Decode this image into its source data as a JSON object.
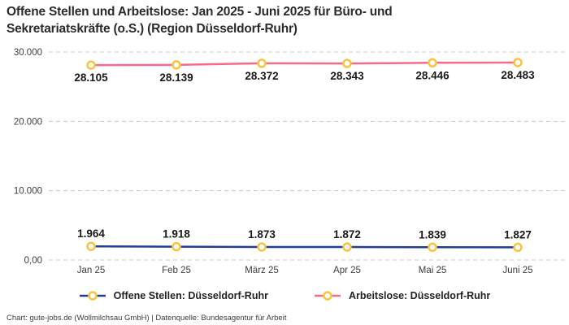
{
  "title": "Offene Stellen und Arbeitslose: Jan 2025 - Juni 2025 für Büro- und Sekretariatskräfte (o.S.) (Region Düsseldorf-Ruhr)",
  "footer": "Chart: gute-jobs.de (Wollmilchsau GmbH) | Datenquelle: Bundesagentur für Arbeit",
  "colors": {
    "blue": "#203d97",
    "pink": "#f8698b",
    "marker": "#fbc33d",
    "grid": "#c9c9c9"
  },
  "chart_data": {
    "type": "line",
    "title": "Offene Stellen und Arbeitslose: Jan 2025 - Juni 2025 für Büro- und Sekretariatskräfte (o.S.) (Region Düsseldorf-Ruhr)",
    "xlabel": "",
    "ylabel": "",
    "categories": [
      "Jan 25",
      "Feb 25",
      "März 25",
      "Apr 25",
      "Mai 25",
      "Juni 25"
    ],
    "series": [
      {
        "name": "Offene Stellen: Düsseldorf-Ruhr",
        "values": [
          1964,
          1918,
          1873,
          1872,
          1839,
          1827
        ],
        "labels": [
          "1.964",
          "1.918",
          "1.873",
          "1.872",
          "1.839",
          "1.827"
        ],
        "color_key": "blue",
        "label_position": "above"
      },
      {
        "name": "Arbeitslose: Düsseldorf-Ruhr",
        "values": [
          28105,
          28139,
          28372,
          28343,
          28446,
          28483
        ],
        "labels": [
          "28.105",
          "28.139",
          "28.372",
          "28.343",
          "28.446",
          "28.483"
        ],
        "color_key": "pink",
        "label_position": "below"
      }
    ],
    "y_ticks": [
      {
        "value": 0,
        "label": "0,00"
      },
      {
        "value": 10000,
        "label": "10.000"
      },
      {
        "value": 20000,
        "label": "20.000"
      },
      {
        "value": 30000,
        "label": "30.000"
      }
    ],
    "ylim": [
      0,
      30000
    ],
    "grid": "horizontal-dashed",
    "legend_position": "bottom",
    "marker_style": "open-circle-yellow"
  }
}
